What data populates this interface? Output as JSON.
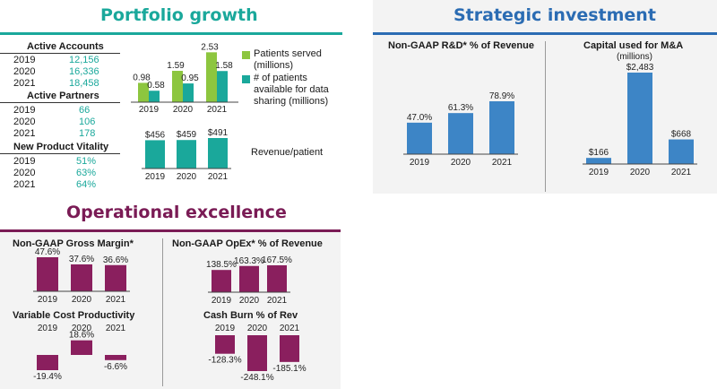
{
  "colors": {
    "teal": "#1aa89b",
    "green": "#8dc63f",
    "purple": "#8a1f5e",
    "blue": "#3d85c6",
    "light_bg": "#f3f3f3",
    "teal_title": "#1aa89b",
    "purple_title": "#7a1b55",
    "blue_title": "#2b6cb3"
  },
  "portfolio": {
    "title": "Portfolio growth",
    "active_accounts": {
      "label": "Active Accounts",
      "rows": [
        {
          "year": "2019",
          "value": "12,156"
        },
        {
          "year": "2020",
          "value": "16,336"
        },
        {
          "year": "2021",
          "value": "18,458"
        }
      ]
    },
    "active_partners": {
      "label": "Active Partners",
      "rows": [
        {
          "year": "2019",
          "value": "66"
        },
        {
          "year": "2020",
          "value": "106"
        },
        {
          "year": "2021",
          "value": "178"
        }
      ]
    },
    "new_product_vitality": {
      "label": "New Product Vitality",
      "rows": [
        {
          "year": "2019",
          "value": "51%"
        },
        {
          "year": "2020",
          "value": "63%"
        },
        {
          "year": "2021",
          "value": "64%"
        }
      ]
    },
    "legend": {
      "patients_served": "Patients served (millions)",
      "patients_available": "# of patients available for data sharing (millions)"
    },
    "revenue_label": "Revenue/patient"
  },
  "strategic": {
    "title": "Strategic investment"
  },
  "operational": {
    "title": "Operational excellence"
  },
  "chart_data": [
    {
      "id": "patients",
      "type": "bar",
      "categories": [
        "2019",
        "2020",
        "2021"
      ],
      "series": [
        {
          "name": "Patients served (millions)",
          "values": [
            0.98,
            1.59,
            2.53
          ],
          "labels": [
            "0.98",
            "1.59",
            "2.53"
          ],
          "color": "#8dc63f"
        },
        {
          "name": "# of patients available for data sharing (millions)",
          "values": [
            0.58,
            0.95,
            1.58
          ],
          "labels": [
            "0.58",
            "0.95",
            "1.58"
          ],
          "color": "#1aa89b"
        }
      ],
      "ylim": [
        0,
        2.6
      ]
    },
    {
      "id": "revenue_patient",
      "type": "bar",
      "title": "Revenue/patient",
      "categories": [
        "2019",
        "2020",
        "2021"
      ],
      "values": [
        456,
        459,
        491
      ],
      "labels": [
        "$456",
        "$459",
        "$491"
      ],
      "ylim": [
        0,
        500
      ]
    },
    {
      "id": "rd",
      "type": "bar",
      "title": "Non-GAAP R&D* % of Revenue",
      "categories": [
        "2019",
        "2020",
        "2021"
      ],
      "values": [
        47.0,
        61.3,
        78.9
      ],
      "labels": [
        "47.0%",
        "61.3%",
        "78.9%"
      ],
      "ylim": [
        0,
        80
      ]
    },
    {
      "id": "mna",
      "type": "bar",
      "title": "Capital used for M&A",
      "subtitle": "(millions)",
      "categories": [
        "2019",
        "2020",
        "2021"
      ],
      "values": [
        166,
        2483,
        668
      ],
      "labels": [
        "$166",
        "$2,483",
        "$668"
      ],
      "ylim": [
        0,
        2500
      ]
    },
    {
      "id": "gross_margin",
      "type": "bar",
      "title": "Non-GAAP Gross Margin*",
      "categories": [
        "2019",
        "2020",
        "2021"
      ],
      "values": [
        47.6,
        37.6,
        36.6
      ],
      "labels": [
        "47.6%",
        "37.6%",
        "36.6%"
      ],
      "ylim": [
        0,
        50
      ]
    },
    {
      "id": "opex",
      "type": "bar",
      "title": "Non-GAAP OpEx* % of Revenue",
      "categories": [
        "2019",
        "2020",
        "2021"
      ],
      "values": [
        138.5,
        163.3,
        167.5
      ],
      "labels": [
        "138.5%",
        "163.3%",
        "167.5%"
      ],
      "ylim": [
        0,
        170
      ]
    },
    {
      "id": "vcp",
      "type": "bar",
      "title": "Variable Cost Productivity",
      "categories": [
        "2019",
        "2020",
        "2021"
      ],
      "values": [
        -19.4,
        18.6,
        -6.6
      ],
      "labels": [
        "-19.4%",
        "18.6%",
        "-6.6%"
      ],
      "ylim": [
        -20,
        20
      ]
    },
    {
      "id": "cash_burn",
      "type": "bar",
      "title": "Cash Burn % of Rev",
      "categories": [
        "2019",
        "2020",
        "2021"
      ],
      "values": [
        -128.3,
        -248.1,
        -185.1
      ],
      "labels": [
        "-128.3%",
        "-248.1%",
        "-185.1%"
      ],
      "ylim": [
        -250,
        0
      ]
    }
  ]
}
